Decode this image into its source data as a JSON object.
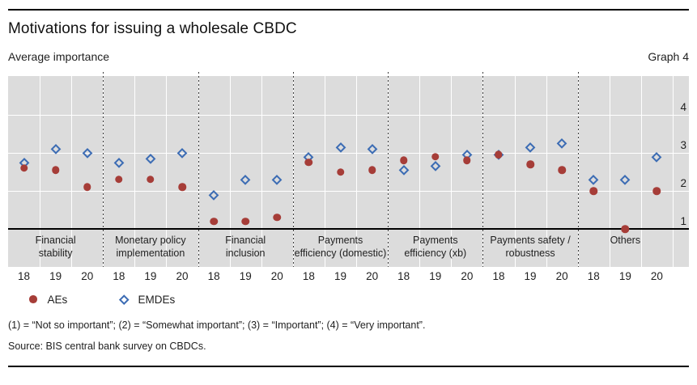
{
  "header": {
    "title": "Motivations for issuing a wholesale CBDC",
    "subtitle_left": "Average importance",
    "graph_label": "Graph 4"
  },
  "colors": {
    "aes_red": "#a63d38",
    "emdes_blue": "#3c6cb4",
    "plot_background": "#dcdcdc",
    "gridline": "#ffffff"
  },
  "legend": {
    "items": [
      {
        "label": "AEs",
        "marker": "dot",
        "color": "#a63d38"
      },
      {
        "label": "EMDEs",
        "marker": "diamond",
        "color": "#3c6cb4"
      }
    ]
  },
  "footnote": "(1) = “Not so important”; (2) = “Somewhat important”; (3) = “Important”; (4) = “Very important”.",
  "source": "Source: BIS central bank survey on CBDCs.",
  "chart_data": {
    "type": "scatter",
    "title": "Motivations for issuing a wholesale CBDC",
    "ylabel": "Average importance",
    "ylim": [
      1,
      5
    ],
    "yticks": [
      1,
      2,
      3,
      4
    ],
    "grid": true,
    "legend_position": "bottom-left",
    "x_years": [
      "18",
      "19",
      "20"
    ],
    "categories": [
      {
        "name": "Financial stability",
        "lines": [
          "Financial",
          "stability"
        ]
      },
      {
        "name": "Monetary policy implementation",
        "lines": [
          "Monetary policy",
          "implementation"
        ]
      },
      {
        "name": "Financial inclusion",
        "lines": [
          "Financial",
          "inclusion"
        ]
      },
      {
        "name": "Payments efficiency (domestic)",
        "lines": [
          "Payments",
          "efficiency (domestic)"
        ]
      },
      {
        "name": "Payments efficiency (xb)",
        "lines": [
          "Payments",
          "efficiency (xb)"
        ]
      },
      {
        "name": "Payments safety / robustness",
        "lines": [
          "Payments safety /",
          "robustness"
        ]
      },
      {
        "name": "Others",
        "lines": [
          "Others"
        ]
      }
    ],
    "series": [
      {
        "name": "AEs",
        "marker": "dot",
        "color": "#a63d38",
        "values": [
          [
            2.6,
            2.55,
            2.1
          ],
          [
            2.3,
            2.3,
            2.1
          ],
          [
            1.2,
            1.2,
            1.3
          ],
          [
            2.75,
            2.5,
            2.55
          ],
          [
            2.8,
            2.9,
            2.8
          ],
          [
            2.95,
            2.7,
            2.55
          ],
          [
            2.0,
            1.0,
            2.0
          ]
        ]
      },
      {
        "name": "EMDEs",
        "marker": "diamond",
        "color": "#3c6cb4",
        "values": [
          [
            2.75,
            3.1,
            3.0
          ],
          [
            2.75,
            2.85,
            3.0
          ],
          [
            1.9,
            2.3,
            2.3
          ],
          [
            2.9,
            3.15,
            3.1
          ],
          [
            2.55,
            2.65,
            2.95
          ],
          [
            2.95,
            3.15,
            3.25
          ],
          [
            2.3,
            2.3,
            2.9
          ]
        ]
      }
    ]
  }
}
